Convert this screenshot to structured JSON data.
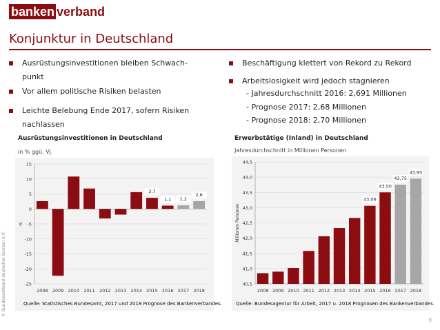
{
  "logo": {
    "part1": "banken",
    "part2": "verband"
  },
  "slide_title": "Konjunktur in Deutschland",
  "bullets_left": [
    {
      "line1": "Ausrüstungsinvestitionen bleiben Schwach-",
      "line2": "punkt"
    },
    {
      "line1": "Vor allem politische Risiken belasten",
      "line2": ""
    },
    {
      "line1": "Leichte Belebung Ende 2017, sofern Risiken",
      "line2": "nachlassen"
    }
  ],
  "bullets_right": [
    {
      "line1": "Beschäftigung klettert von Rekord zu Rekord"
    },
    {
      "line1": "Arbeitslosigkeit wird jedoch stagnieren"
    }
  ],
  "sub_lines": [
    "- Jahresdurchschnitt 2016: 2,691 Millionen",
    "- Prognose 2017: 2,68 Millionen",
    "- Prognose 2018: 2,70 Millionen"
  ],
  "colors": {
    "brand": "#8b0d12",
    "actual_bar": "#8b0d12",
    "forecast_bar": "#a6a6a6",
    "panel": "#f3f3f3"
  },
  "copyright_side": "© Bundesverband deutscher Banken e.V.",
  "page_number": "9",
  "chart_data": [
    {
      "type": "bar",
      "title": "Ausrüstungsinvestitionen in Deutschland",
      "subtitle": "in % ggü. Vj.",
      "ylabel": "%",
      "categories": [
        "2008",
        "2009",
        "2010",
        "2011",
        "2012",
        "2013",
        "2014",
        "2015",
        "2016",
        "2017",
        "2018"
      ],
      "values": [
        2.6,
        -22.3,
        10.8,
        6.8,
        -3.2,
        -1.9,
        5.6,
        3.7,
        1.1,
        1.2,
        2.6
      ],
      "forecast_from_index": 9,
      "data_labels": {
        "7": "3,7",
        "8": "1,1",
        "9": "1,2",
        "10": "2,6"
      },
      "ylim": [
        -25,
        15
      ],
      "yticks": [
        15,
        10,
        5,
        0,
        -5,
        -10,
        -15,
        -20,
        -25
      ],
      "grid": true,
      "source": "Quelle: Statistisches Bundesamt, 2017 und 2018 Prognose des Bankenverbandes."
    },
    {
      "type": "bar",
      "title": "Erwerbstätige (Inland) in Deutschland",
      "subtitle": "Jahresdurchschnitt in Millionen Personen",
      "ylabel": "Millionen Personen",
      "categories": [
        "2008",
        "2009",
        "2010",
        "2011",
        "2012",
        "2013",
        "2014",
        "2015",
        "2016",
        "2017",
        "2018"
      ],
      "values": [
        40.85,
        40.9,
        41.02,
        41.58,
        42.06,
        42.33,
        42.66,
        43.06,
        43.5,
        43.75,
        43.95
      ],
      "forecast_from_index": 9,
      "data_labels": {
        "7": "43,06",
        "8": "43,50",
        "9": "43,75",
        "10": "43,95"
      },
      "ylim": [
        40.5,
        44.5
      ],
      "yticks": [
        "44,5",
        "44,0",
        "43,5",
        "43,0",
        "42,5",
        "42,0",
        "41,5",
        "41,0",
        "40,5"
      ],
      "grid": true,
      "source": "Quelle: Bundesagentur für Arbeit, 2017 u. 2018 Prognosen des Bankenverbandes."
    }
  ]
}
